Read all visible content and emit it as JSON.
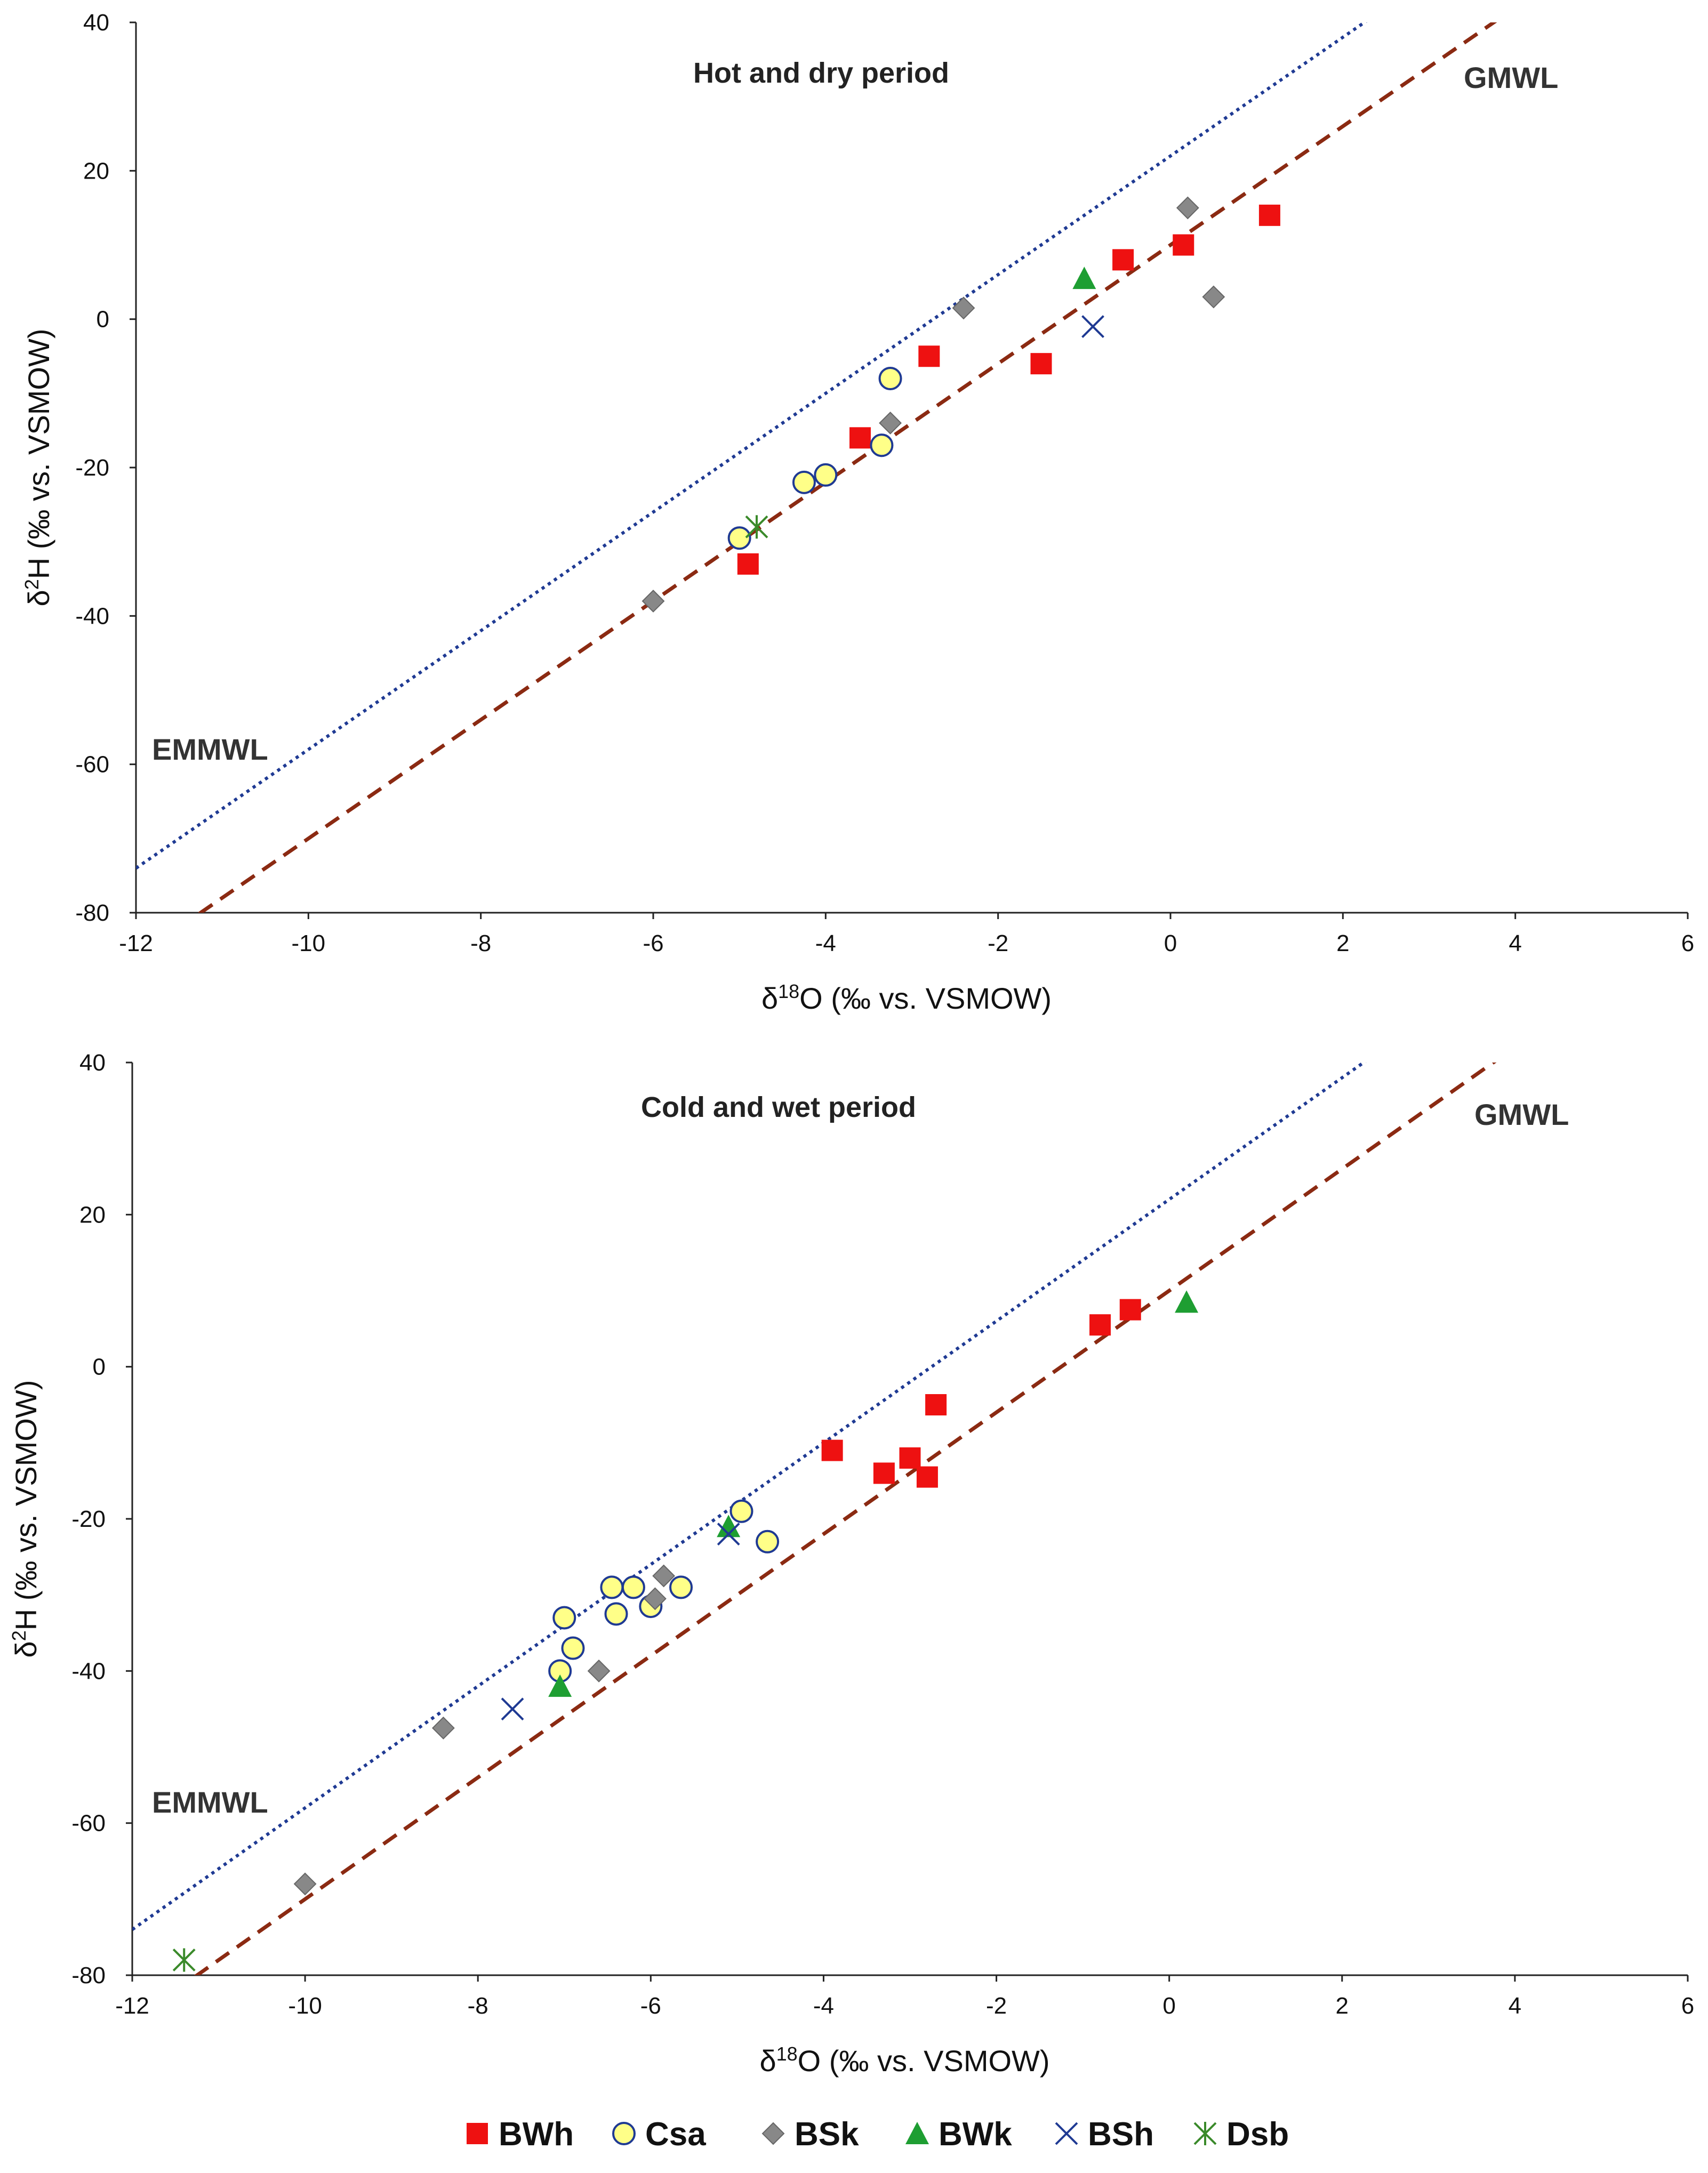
{
  "chart_data": [
    {
      "type": "scatter",
      "title": "Hot and dry period",
      "xlabel_prefix": "δ",
      "xlabel_sup": "18",
      "xlabel_suffix": "O (‰ vs. VSMOW)",
      "ylabel_prefix": "δ",
      "ylabel_sup": "2",
      "ylabel_suffix": "H (‰ vs. VSMOW)",
      "xlim": [
        -12,
        6
      ],
      "ylim": [
        -80,
        40
      ],
      "xticks": [
        -12,
        -10,
        -8,
        -6,
        -4,
        -2,
        0,
        2,
        4,
        6
      ],
      "yticks": [
        -80,
        -60,
        -40,
        -20,
        0,
        20,
        40
      ],
      "lines": [
        {
          "name": "EMMWL",
          "slope": 8,
          "intercept": 22,
          "color": "#1f3a93",
          "style": "dotted"
        },
        {
          "name": "GMWL",
          "slope": 8,
          "intercept": 10,
          "color": "#8b2a12",
          "style": "dashed"
        }
      ],
      "series": [
        {
          "name": "BWh",
          "marker": "square",
          "color": "#ee1111",
          "points": [
            [
              -4.9,
              -33
            ],
            [
              -3.6,
              -16
            ],
            [
              -2.8,
              -5
            ],
            [
              -1.5,
              -6
            ],
            [
              -0.55,
              8
            ],
            [
              0.15,
              10
            ],
            [
              1.15,
              14
            ]
          ]
        },
        {
          "name": "Csa",
          "marker": "circle",
          "color": "#ffff88",
          "points": [
            [
              -5.0,
              -29.5
            ],
            [
              -4.25,
              -22
            ],
            [
              -4.0,
              -21
            ],
            [
              -3.35,
              -17
            ],
            [
              -3.25,
              -8
            ]
          ]
        },
        {
          "name": "BSk",
          "marker": "diamond",
          "color": "#888888",
          "points": [
            [
              -6.0,
              -38
            ],
            [
              -3.25,
              -14
            ],
            [
              -2.4,
              1.5
            ],
            [
              0.2,
              15
            ],
            [
              0.5,
              3
            ]
          ]
        },
        {
          "name": "BWk",
          "marker": "triangle",
          "color": "#1e9e32",
          "points": [
            [
              -1.0,
              5.5
            ]
          ]
        },
        {
          "name": "BSh",
          "marker": "x",
          "color": "#1f3a93",
          "points": [
            [
              -0.9,
              -1
            ]
          ]
        },
        {
          "name": "Dsb",
          "marker": "asterisk",
          "color": "#3a8a2a",
          "points": [
            [
              -4.8,
              -28
            ]
          ]
        }
      ]
    },
    {
      "type": "scatter",
      "title": "Cold and wet period",
      "xlabel_prefix": "δ",
      "xlabel_sup": "18",
      "xlabel_suffix": "O (‰ vs. VSMOW)",
      "ylabel_prefix": "δ",
      "ylabel_sup": "2",
      "ylabel_suffix": "H (‰ vs. VSMOW)",
      "xlim": [
        -12,
        6
      ],
      "ylim": [
        -80,
        40
      ],
      "xticks": [
        -12,
        -10,
        -8,
        -6,
        -4,
        -2,
        0,
        2,
        4,
        6
      ],
      "yticks": [
        -80,
        -60,
        -40,
        -20,
        0,
        20,
        40
      ],
      "lines": [
        {
          "name": "EMMWL",
          "slope": 8,
          "intercept": 22,
          "color": "#1f3a93",
          "style": "dotted"
        },
        {
          "name": "GMWL",
          "slope": 8,
          "intercept": 10,
          "color": "#8b2a12",
          "style": "dashed"
        }
      ],
      "series": [
        {
          "name": "BWh",
          "marker": "square",
          "color": "#ee1111",
          "points": [
            [
              -3.9,
              -11
            ],
            [
              -3.3,
              -14
            ],
            [
              -3.0,
              -12
            ],
            [
              -2.8,
              -14.5
            ],
            [
              -2.7,
              -5
            ],
            [
              -0.8,
              5.5
            ],
            [
              -0.45,
              7.5
            ]
          ]
        },
        {
          "name": "Csa",
          "marker": "circle",
          "color": "#ffff88",
          "points": [
            [
              -7.05,
              -40
            ],
            [
              -7.0,
              -33
            ],
            [
              -6.9,
              -37
            ],
            [
              -6.45,
              -29
            ],
            [
              -6.4,
              -32.5
            ],
            [
              -6.2,
              -29
            ],
            [
              -6.0,
              -31.5
            ],
            [
              -5.65,
              -29
            ],
            [
              -4.95,
              -19
            ],
            [
              -4.65,
              -23
            ]
          ]
        },
        {
          "name": "BSk",
          "marker": "diamond",
          "color": "#888888",
          "points": [
            [
              -10.0,
              -68
            ],
            [
              -8.4,
              -47.5
            ],
            [
              -6.6,
              -40
            ],
            [
              -5.95,
              -30.5
            ],
            [
              -5.85,
              -27.5
            ]
          ]
        },
        {
          "name": "BWk",
          "marker": "triangle",
          "color": "#1e9e32",
          "points": [
            [
              -7.05,
              -42
            ],
            [
              -5.1,
              -21
            ],
            [
              0.2,
              8.5
            ]
          ]
        },
        {
          "name": "BSh",
          "marker": "x",
          "color": "#1f3a93",
          "points": [
            [
              -7.6,
              -45
            ],
            [
              -5.1,
              -22
            ]
          ]
        },
        {
          "name": "Dsb",
          "marker": "asterisk",
          "color": "#3a8a2a",
          "points": [
            [
              -11.4,
              -78
            ]
          ]
        }
      ]
    }
  ],
  "legend": [
    {
      "label": "BWh",
      "marker": "square",
      "color": "#ee1111"
    },
    {
      "label": "Csa",
      "marker": "circle",
      "color": "#ffff88"
    },
    {
      "label": "BSk",
      "marker": "diamond",
      "color": "#888888"
    },
    {
      "label": "BWk",
      "marker": "triangle",
      "color": "#1e9e32"
    },
    {
      "label": "BSh",
      "marker": "x",
      "color": "#1f3a93"
    },
    {
      "label": "Dsb",
      "marker": "asterisk",
      "color": "#3a8a2a"
    }
  ]
}
